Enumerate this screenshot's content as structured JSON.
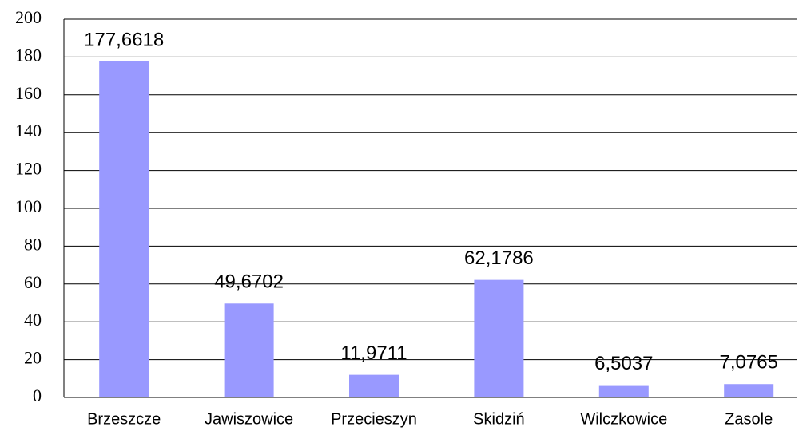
{
  "chart_data": {
    "type": "bar",
    "categories": [
      "Brzeszcze",
      "Jawiszowice",
      "Przecieszyn",
      "Skidziń",
      "Wilczkowice",
      "Zasole"
    ],
    "values": [
      177.6618,
      49.6702,
      11.9711,
      62.1786,
      6.5037,
      7.0765
    ],
    "value_labels": [
      "177,6618",
      "49,6702",
      "11,9711",
      "62,1786",
      "6,5037",
      "7,0765"
    ],
    "color": "#9999ff",
    "ylim": [
      0,
      200
    ],
    "yticks": [
      0,
      20,
      40,
      60,
      80,
      100,
      120,
      140,
      160,
      180,
      200
    ],
    "grid": true
  }
}
